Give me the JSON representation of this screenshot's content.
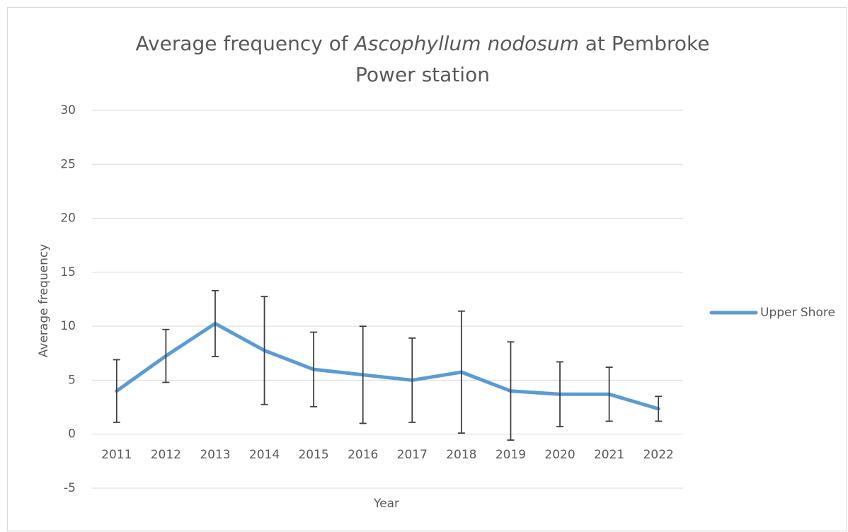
{
  "chart_data": {
    "type": "line",
    "title": [
      {
        "text": "Average frequency of "
      },
      {
        "text": "Ascophyllum nodosum",
        "style": "italic"
      },
      {
        "text": " at Pembroke Power station"
      }
    ],
    "x_label": "Year",
    "y_label": "Average frequency",
    "categories": [
      "2011",
      "2012",
      "2013",
      "2014",
      "2015",
      "2016",
      "2017",
      "2018",
      "2019",
      "2020",
      "2021",
      "2022"
    ],
    "series": [
      {
        "name": "Upper Shore",
        "color": "#5b9bd5",
        "values": [
          4.0,
          7.25,
          10.25,
          7.75,
          6.0,
          5.5,
          5.0,
          5.75,
          4.0,
          3.7,
          3.7,
          2.35
        ],
        "errors": [
          2.9,
          2.45,
          3.05,
          5.0,
          3.45,
          4.5,
          3.9,
          5.65,
          4.55,
          3.0,
          2.5,
          1.15
        ]
      }
    ],
    "ylim": [
      -5,
      30
    ],
    "yticks": [
      -5,
      0,
      5,
      10,
      15,
      20,
      25,
      30
    ],
    "grid": true,
    "legend": "right"
  }
}
